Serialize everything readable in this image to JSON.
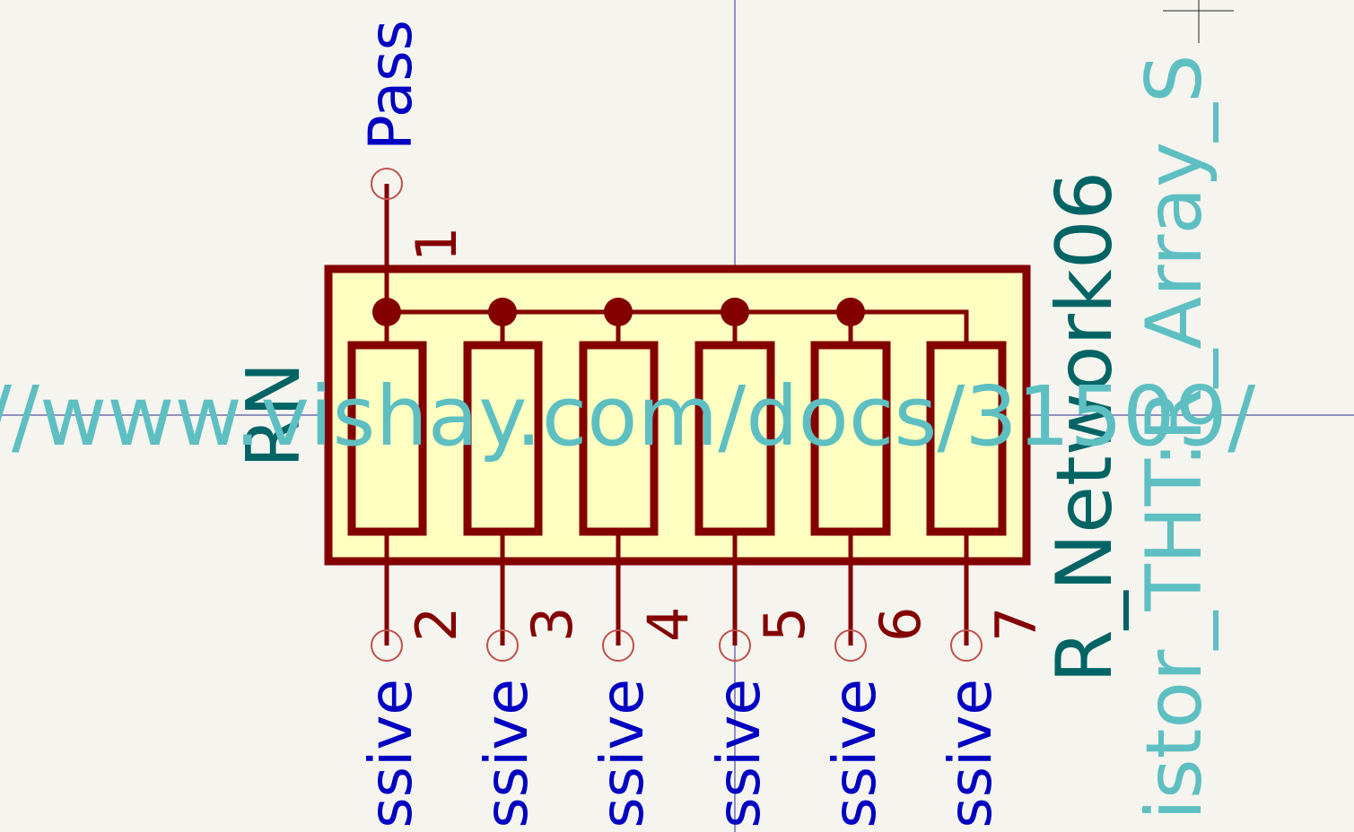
{
  "symbol": {
    "reference": "RN",
    "value": "R_Network06",
    "footprint": "istor_THT:R_Array_S",
    "datasheet": "//www.vishay.com/docs/31509/"
  },
  "pins": [
    {
      "number": "1",
      "type": "Pass"
    },
    {
      "number": "2",
      "type": "ssive"
    },
    {
      "number": "3",
      "type": "ssive"
    },
    {
      "number": "4",
      "type": "ssive"
    },
    {
      "number": "5",
      "type": "ssive"
    },
    {
      "number": "6",
      "type": "ssive"
    },
    {
      "number": "7",
      "type": "ssive"
    }
  ],
  "colors": {
    "background": "#f5f4ef",
    "body_fill": "#ffffc2",
    "body_outline": "#840000",
    "pin_end": "#c0504d",
    "pin_type_text": "#0000c2",
    "reference_text": "#006464",
    "footprint_text": "#5ebfc2",
    "crosshair": "#2b2b8c"
  }
}
